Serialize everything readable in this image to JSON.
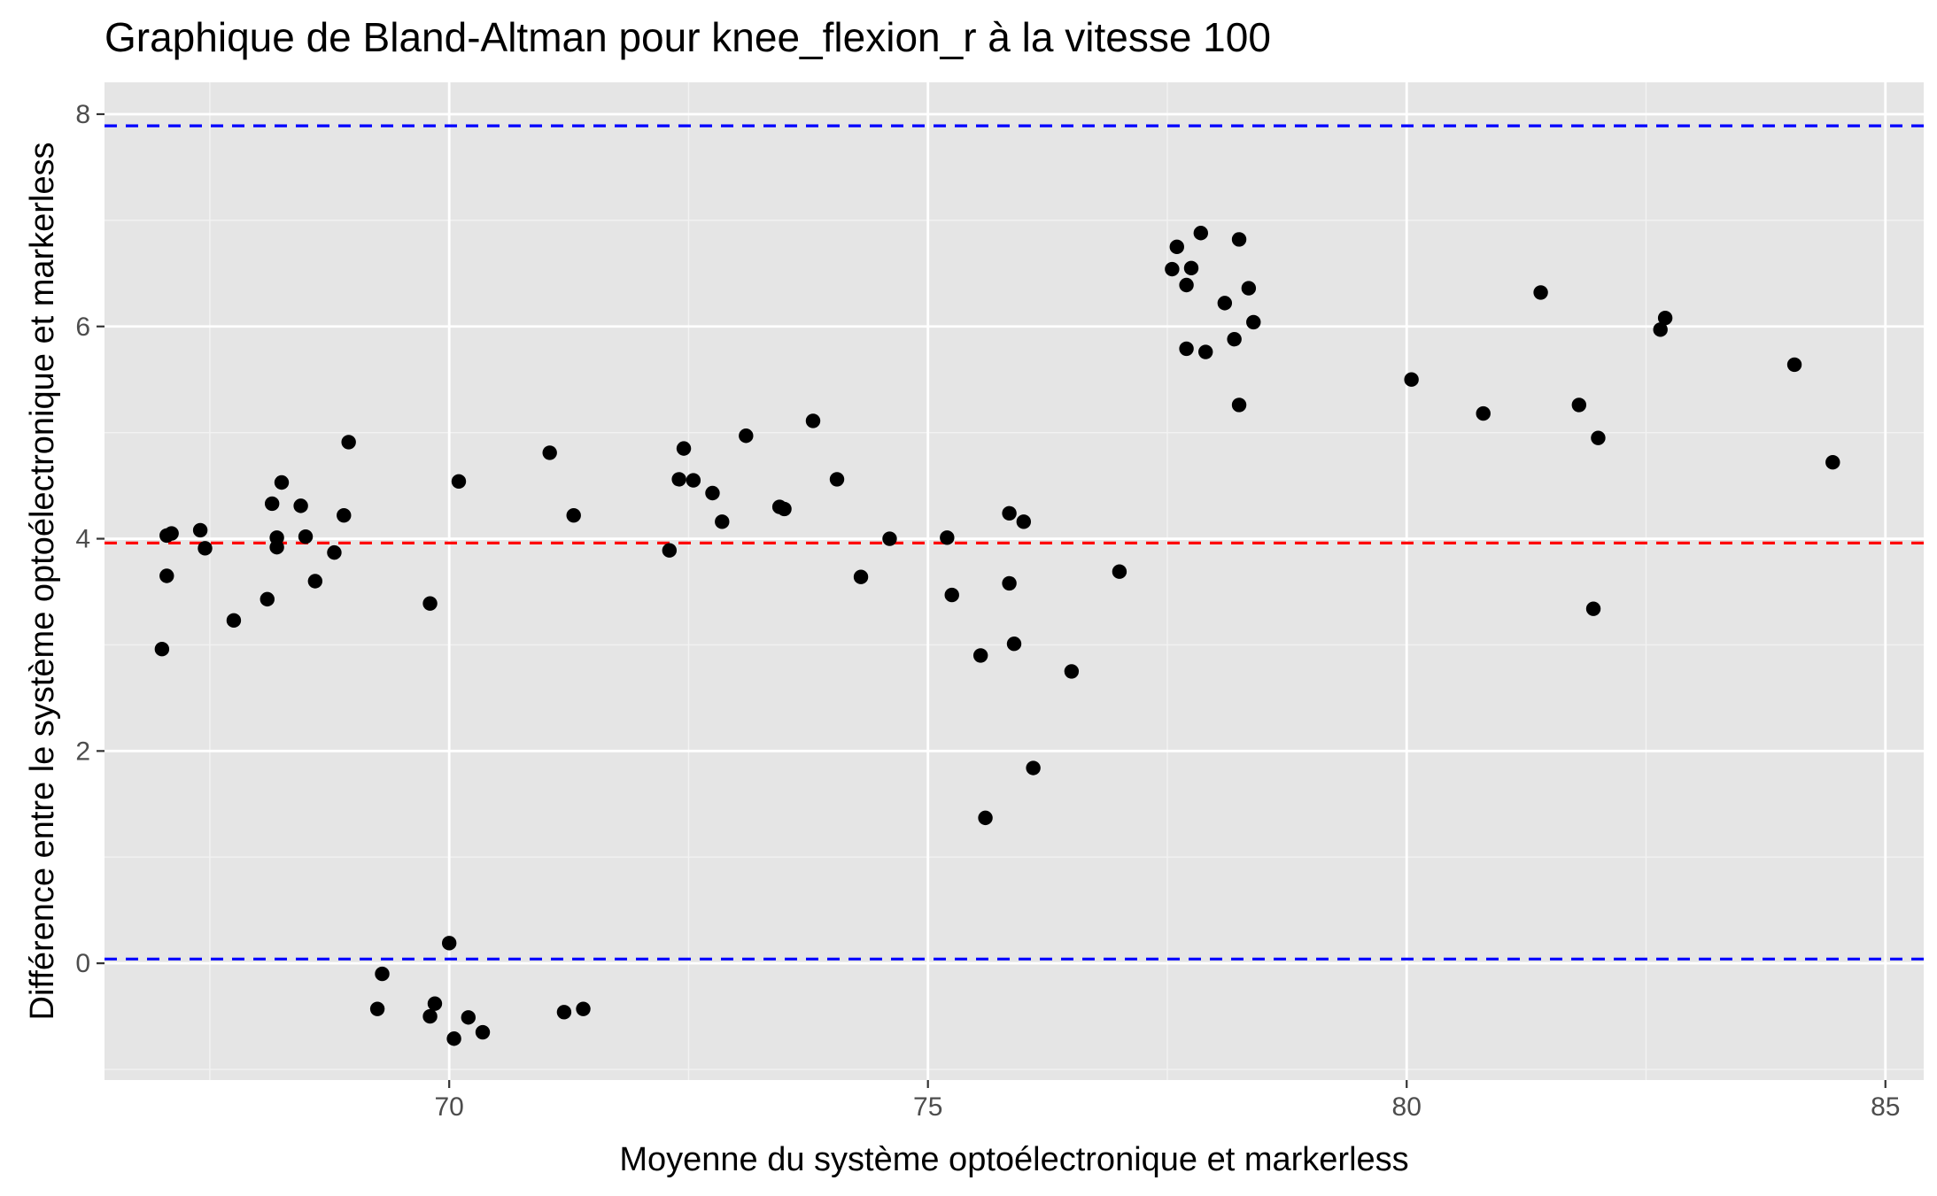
{
  "chart_data": {
    "type": "scatter",
    "title": "Graphique de Bland-Altman pour knee_flexion_r à la vitesse 100",
    "xlabel": "Moyenne du système optoélectronique et markerless",
    "ylabel": "Différence entre le système optoélectronique et markerless",
    "xlim": [
      66.4,
      85.4
    ],
    "ylim": [
      -1.1,
      8.3
    ],
    "xticks": [
      70,
      75,
      80,
      85
    ],
    "yticks": [
      0,
      2,
      4,
      6,
      8
    ],
    "xtick_labels": [
      "70",
      "75",
      "80",
      "85"
    ],
    "ytick_labels": [
      "0",
      "2",
      "4",
      "6",
      "8"
    ],
    "grid": true,
    "background": "#e5e5e5",
    "point_color": "#000000",
    "reference_lines": [
      {
        "role": "upper limit of agreement",
        "y": 7.89,
        "color": "#0000ff",
        "style": "dashed"
      },
      {
        "role": "mean difference",
        "y": 3.96,
        "color": "#ff0000",
        "style": "dashed"
      },
      {
        "role": "lower limit of agreement",
        "y": 0.04,
        "color": "#0000ff",
        "style": "dashed"
      }
    ],
    "points": [
      [
        67.0,
        2.96
      ],
      [
        67.05,
        4.03
      ],
      [
        67.1,
        4.05
      ],
      [
        67.05,
        3.65
      ],
      [
        67.4,
        4.08
      ],
      [
        67.45,
        3.91
      ],
      [
        67.75,
        3.23
      ],
      [
        68.1,
        3.43
      ],
      [
        68.15,
        4.33
      ],
      [
        68.2,
        4.01
      ],
      [
        68.2,
        3.92
      ],
      [
        68.25,
        4.53
      ],
      [
        68.45,
        4.31
      ],
      [
        68.5,
        4.02
      ],
      [
        68.6,
        3.6
      ],
      [
        68.8,
        3.87
      ],
      [
        68.9,
        4.22
      ],
      [
        68.95,
        4.91
      ],
      [
        69.3,
        -0.1
      ],
      [
        69.25,
        -0.43
      ],
      [
        69.8,
        -0.5
      ],
      [
        69.85,
        -0.38
      ],
      [
        69.8,
        3.39
      ],
      [
        70.0,
        0.19
      ],
      [
        70.05,
        -0.71
      ],
      [
        70.1,
        4.54
      ],
      [
        70.2,
        -0.51
      ],
      [
        70.35,
        -0.65
      ],
      [
        71.05,
        4.81
      ],
      [
        71.2,
        -0.46
      ],
      [
        71.3,
        4.22
      ],
      [
        71.4,
        -0.43
      ],
      [
        72.3,
        3.89
      ],
      [
        72.4,
        4.56
      ],
      [
        72.45,
        4.85
      ],
      [
        72.55,
        4.55
      ],
      [
        72.75,
        4.43
      ],
      [
        72.85,
        4.16
      ],
      [
        73.1,
        4.97
      ],
      [
        73.45,
        4.3
      ],
      [
        73.5,
        4.28
      ],
      [
        73.8,
        5.11
      ],
      [
        74.05,
        4.56
      ],
      [
        74.3,
        3.64
      ],
      [
        74.6,
        4.0
      ],
      [
        75.2,
        4.01
      ],
      [
        75.25,
        3.47
      ],
      [
        75.55,
        2.9
      ],
      [
        75.6,
        1.37
      ],
      [
        75.85,
        4.24
      ],
      [
        75.85,
        3.58
      ],
      [
        75.9,
        3.01
      ],
      [
        76.0,
        4.16
      ],
      [
        76.1,
        1.84
      ],
      [
        76.5,
        2.75
      ],
      [
        77.0,
        3.69
      ],
      [
        77.55,
        6.54
      ],
      [
        77.6,
        6.75
      ],
      [
        77.7,
        6.39
      ],
      [
        77.7,
        5.79
      ],
      [
        77.75,
        6.55
      ],
      [
        77.85,
        6.88
      ],
      [
        77.9,
        5.76
      ],
      [
        78.1,
        6.22
      ],
      [
        78.2,
        5.88
      ],
      [
        78.25,
        6.82
      ],
      [
        78.25,
        5.26
      ],
      [
        78.35,
        6.36
      ],
      [
        78.4,
        6.04
      ],
      [
        80.05,
        5.5
      ],
      [
        80.8,
        5.18
      ],
      [
        81.4,
        6.32
      ],
      [
        81.8,
        5.26
      ],
      [
        81.95,
        3.34
      ],
      [
        82.0,
        4.95
      ],
      [
        82.65,
        5.97
      ],
      [
        82.7,
        6.08
      ],
      [
        84.05,
        5.64
      ],
      [
        84.45,
        4.72
      ]
    ]
  }
}
